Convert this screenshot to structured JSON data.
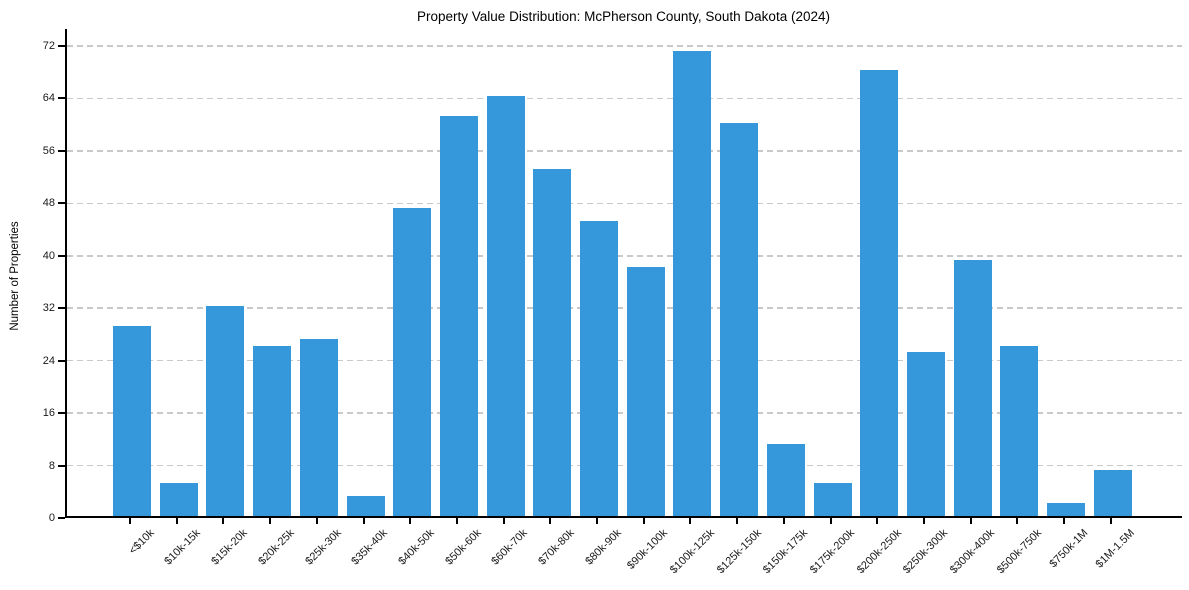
{
  "chart_data": {
    "type": "bar",
    "title": "Property Value Distribution: McPherson County, South Dakota (2024)",
    "xlabel": "",
    "ylabel": "Number of Properties",
    "categories": [
      "<$10k",
      "$10k-15k",
      "$15k-20k",
      "$20k-25k",
      "$25k-30k",
      "$35k-40k",
      "$40k-50k",
      "$50k-60k",
      "$60k-70k",
      "$70k-80k",
      "$80k-90k",
      "$90k-100k",
      "$100k-125k",
      "$125k-150k",
      "$150k-175k",
      "$175k-200k",
      "$200k-250k",
      "$250k-300k",
      "$300k-400k",
      "$500k-750k",
      "$750k-1M",
      "$1M-1.5M"
    ],
    "values": [
      29,
      5,
      32,
      26,
      27,
      3,
      47,
      61,
      64,
      53,
      45,
      38,
      71,
      60,
      11,
      5,
      68,
      25,
      39,
      26,
      2,
      7
    ],
    "yticks": [
      0,
      8,
      16,
      24,
      32,
      40,
      48,
      56,
      64,
      72
    ],
    "ylim": [
      0,
      74.6
    ],
    "grid": "horizontal-dashed",
    "legend_position": "none",
    "bar_color": "#3498db"
  },
  "colors": {
    "bar": "#3498db",
    "gridline": "#c9c9c9",
    "axis": "#000000",
    "text": "#1a1a1a",
    "background": "#ffffff"
  }
}
